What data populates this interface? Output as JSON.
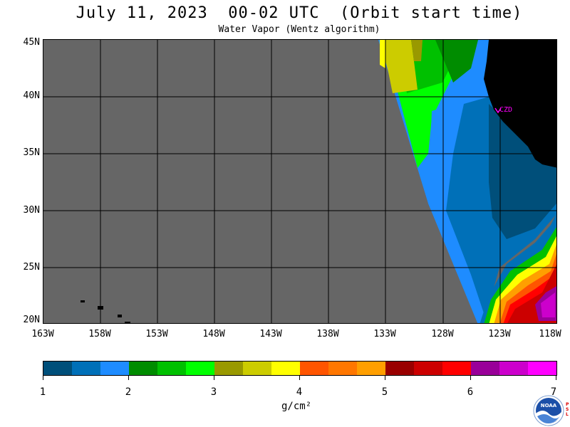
{
  "title": "July 11, 2023  00-02 UTC  (Orbit start time)",
  "subtitle": "Water Vapor (Wentz algorithm)",
  "lat_labels": [
    "45N",
    "40N",
    "35N",
    "30N",
    "25N",
    "20N"
  ],
  "lon_labels": [
    "163W",
    "158W",
    "153W",
    "148W",
    "143W",
    "138W",
    "133W",
    "128W",
    "123W",
    "118W"
  ],
  "station_label": "CZD",
  "colorbar": {
    "tick_labels": [
      "1",
      "2",
      "3",
      "4",
      "5",
      "6",
      "7"
    ],
    "units": "g/cm²",
    "colors": [
      "#004f7a",
      "#0070b8",
      "#1e8cff",
      "#008c00",
      "#00c000",
      "#00ff00",
      "#999900",
      "#cccc00",
      "#ffff00",
      "#ff5500",
      "#ff7700",
      "#ff9f00",
      "#990000",
      "#cc0000",
      "#ff0000",
      "#990099",
      "#cc00cc",
      "#ff00ff"
    ]
  },
  "colors": {
    "no_data": "#666666",
    "land": "#000000",
    "station": "#ff00ff"
  },
  "logo_text": "NOAA",
  "logo_side_text": "PSL"
}
